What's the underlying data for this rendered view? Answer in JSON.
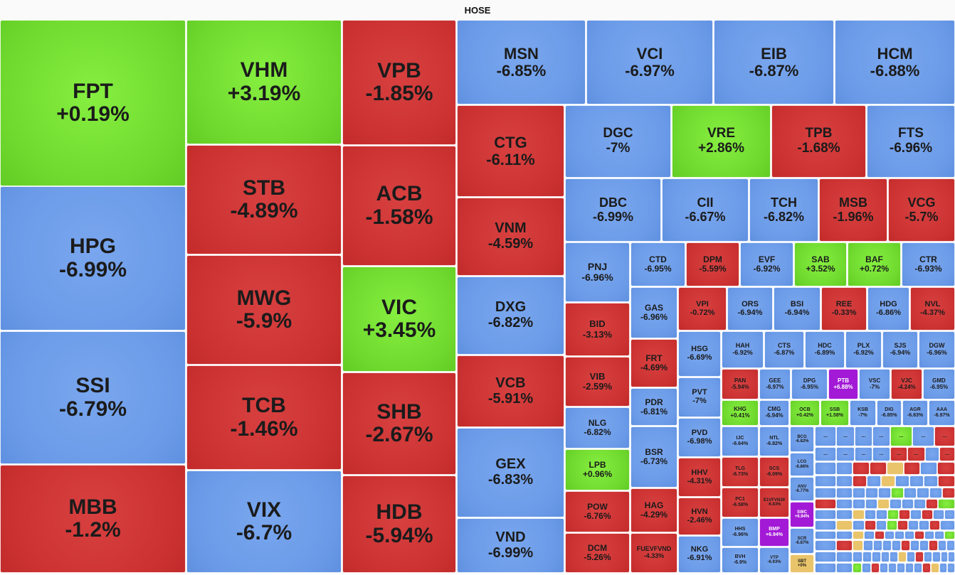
{
  "exchange": "HOSE",
  "colors": {
    "up": "#6fd92e",
    "down": "#cc3232",
    "floor": "#6b9be8",
    "ceiling": "#a21ad6",
    "reference": "#e9c46a"
  },
  "tiles": [
    {
      "ticker": "FPT",
      "change": "+0.19%",
      "status": "up"
    },
    {
      "ticker": "HPG",
      "change": "-6.99%",
      "status": "floor"
    },
    {
      "ticker": "SSI",
      "change": "-6.79%",
      "status": "floor"
    },
    {
      "ticker": "MBB",
      "change": "-1.2%",
      "status": "down"
    },
    {
      "ticker": "VHM",
      "change": "+3.19%",
      "status": "up"
    },
    {
      "ticker": "STB",
      "change": "-4.89%",
      "status": "down"
    },
    {
      "ticker": "MWG",
      "change": "-5.9%",
      "status": "down"
    },
    {
      "ticker": "TCB",
      "change": "-1.46%",
      "status": "down"
    },
    {
      "ticker": "VIX",
      "change": "-6.7%",
      "status": "floor"
    },
    {
      "ticker": "VPB",
      "change": "-1.85%",
      "status": "down"
    },
    {
      "ticker": "ACB",
      "change": "-1.58%",
      "status": "down"
    },
    {
      "ticker": "VIC",
      "change": "+3.45%",
      "status": "up"
    },
    {
      "ticker": "SHB",
      "change": "-2.67%",
      "status": "down"
    },
    {
      "ticker": "HDB",
      "change": "-5.94%",
      "status": "down"
    },
    {
      "ticker": "MSN",
      "change": "-6.85%",
      "status": "floor"
    },
    {
      "ticker": "VCI",
      "change": "-6.97%",
      "status": "floor"
    },
    {
      "ticker": "EIB",
      "change": "-6.87%",
      "status": "floor"
    },
    {
      "ticker": "HCM",
      "change": "-6.88%",
      "status": "floor"
    },
    {
      "ticker": "CTG",
      "change": "-6.11%",
      "status": "down"
    },
    {
      "ticker": "VNM",
      "change": "-4.59%",
      "status": "down"
    },
    {
      "ticker": "DXG",
      "change": "-6.82%",
      "status": "floor"
    },
    {
      "ticker": "VCB",
      "change": "-5.91%",
      "status": "down"
    },
    {
      "ticker": "GEX",
      "change": "-6.83%",
      "status": "floor"
    },
    {
      "ticker": "VND",
      "change": "-6.99%",
      "status": "floor"
    },
    {
      "ticker": "DGC",
      "change": "-7%",
      "status": "floor"
    },
    {
      "ticker": "VRE",
      "change": "+2.86%",
      "status": "up"
    },
    {
      "ticker": "TPB",
      "change": "-1.68%",
      "status": "down"
    },
    {
      "ticker": "FTS",
      "change": "-6.96%",
      "status": "floor"
    },
    {
      "ticker": "DBC",
      "change": "-6.99%",
      "status": "floor"
    },
    {
      "ticker": "CII",
      "change": "-6.67%",
      "status": "floor"
    },
    {
      "ticker": "TCH",
      "change": "-6.82%",
      "status": "floor"
    },
    {
      "ticker": "MSB",
      "change": "-1.96%",
      "status": "down"
    },
    {
      "ticker": "VCG",
      "change": "-5.7%",
      "status": "down"
    },
    {
      "ticker": "PNJ",
      "change": "-6.96%",
      "status": "floor"
    },
    {
      "ticker": "CTD",
      "change": "-6.95%",
      "status": "floor"
    },
    {
      "ticker": "DPM",
      "change": "-5.59%",
      "status": "down"
    },
    {
      "ticker": "EVF",
      "change": "-6.92%",
      "status": "floor"
    },
    {
      "ticker": "SAB",
      "change": "+3.52%",
      "status": "up"
    },
    {
      "ticker": "BAF",
      "change": "+0.72%",
      "status": "up"
    },
    {
      "ticker": "CTR",
      "change": "-6.93%",
      "status": "floor"
    },
    {
      "ticker": "GAS",
      "change": "-6.96%",
      "status": "floor"
    },
    {
      "ticker": "VPI",
      "change": "-0.72%",
      "status": "down"
    },
    {
      "ticker": "ORS",
      "change": "-6.94%",
      "status": "floor"
    },
    {
      "ticker": "BSI",
      "change": "-6.94%",
      "status": "floor"
    },
    {
      "ticker": "REE",
      "change": "-0.33%",
      "status": "down"
    },
    {
      "ticker": "HDG",
      "change": "-6.86%",
      "status": "floor"
    },
    {
      "ticker": "NVL",
      "change": "-4.37%",
      "status": "down"
    },
    {
      "ticker": "BID",
      "change": "-3.13%",
      "status": "down"
    },
    {
      "ticker": "VIB",
      "change": "-2.59%",
      "status": "down"
    },
    {
      "ticker": "NLG",
      "change": "-6.82%",
      "status": "floor"
    },
    {
      "ticker": "LPB",
      "change": "+0.96%",
      "status": "up"
    },
    {
      "ticker": "POW",
      "change": "-6.76%",
      "status": "down"
    },
    {
      "ticker": "DCM",
      "change": "-5.26%",
      "status": "down"
    },
    {
      "ticker": "FRT",
      "change": "-4.69%",
      "status": "down"
    },
    {
      "ticker": "PDR",
      "change": "-6.81%",
      "status": "floor"
    },
    {
      "ticker": "BSR",
      "change": "-6.73%",
      "status": "floor"
    },
    {
      "ticker": "HAG",
      "change": "-4.29%",
      "status": "down"
    },
    {
      "ticker": "FUEVFVND",
      "change": "-4.33%",
      "status": "down"
    },
    {
      "ticker": "HSG",
      "change": "-6.69%",
      "status": "floor"
    },
    {
      "ticker": "PVT",
      "change": "-7%",
      "status": "floor"
    },
    {
      "ticker": "PVD",
      "change": "-6.98%",
      "status": "floor"
    },
    {
      "ticker": "HHV",
      "change": "-4.31%",
      "status": "down"
    },
    {
      "ticker": "HVN",
      "change": "-2.46%",
      "status": "down"
    },
    {
      "ticker": "NKG",
      "change": "-6.91%",
      "status": "floor"
    },
    {
      "ticker": "HAH",
      "change": "-6.92%",
      "status": "floor"
    },
    {
      "ticker": "CTS",
      "change": "-6.87%",
      "status": "floor"
    },
    {
      "ticker": "HDC",
      "change": "-6.89%",
      "status": "floor"
    },
    {
      "ticker": "PLX",
      "change": "-6.92%",
      "status": "floor"
    },
    {
      "ticker": "SJS",
      "change": "-6.94%",
      "status": "floor"
    },
    {
      "ticker": "DGW",
      "change": "-6.96%",
      "status": "floor"
    },
    {
      "ticker": "PAN",
      "change": "-5.94%",
      "status": "down"
    },
    {
      "ticker": "GEE",
      "change": "-6.97%",
      "status": "floor"
    },
    {
      "ticker": "DPG",
      "change": "-6.95%",
      "status": "floor"
    },
    {
      "ticker": "PTB",
      "change": "+6.88%",
      "status": "ceiling"
    },
    {
      "ticker": "VSC",
      "change": "-7%",
      "status": "floor"
    },
    {
      "ticker": "VJC",
      "change": "-4.24%",
      "status": "down"
    },
    {
      "ticker": "GMD",
      "change": "-6.95%",
      "status": "floor"
    },
    {
      "ticker": "KHG",
      "change": "+0.41%",
      "status": "up"
    },
    {
      "ticker": "CMG",
      "change": "-6.94%",
      "status": "floor"
    },
    {
      "ticker": "OCB",
      "change": "+0.42%",
      "status": "up"
    },
    {
      "ticker": "SSB",
      "change": "+1.58%",
      "status": "up"
    },
    {
      "ticker": "KSB",
      "change": "-7%",
      "status": "floor"
    },
    {
      "ticker": "DIG",
      "change": "-6.85%",
      "status": "floor"
    },
    {
      "ticker": "AGR",
      "change": "-6.83%",
      "status": "floor"
    },
    {
      "ticker": "AAA",
      "change": "-6.97%",
      "status": "floor"
    },
    {
      "ticker": "IJC",
      "change": "-6.64%",
      "status": "floor"
    },
    {
      "ticker": "NTL",
      "change": "-6.82%",
      "status": "floor"
    },
    {
      "ticker": "BCG",
      "change": "-6.82%",
      "status": "floor"
    },
    {
      "ticker": "TLG",
      "change": "-6.73%",
      "status": "down"
    },
    {
      "ticker": "SCS",
      "change": "-6.09%",
      "status": "down"
    },
    {
      "ticker": "LCG",
      "change": "-6.86%",
      "status": "floor"
    },
    {
      "ticker": "PC1",
      "change": "-6.58%",
      "status": "down"
    },
    {
      "ticker": "E1VFVN30",
      "change": "-6.83%",
      "status": "down"
    },
    {
      "ticker": "ANV",
      "change": "-6.77%",
      "status": "floor"
    },
    {
      "ticker": "HHS",
      "change": "-6.96%",
      "status": "floor"
    },
    {
      "ticker": "BMP",
      "change": "+6.94%",
      "status": "ceiling"
    },
    {
      "ticker": "SWC",
      "change": "+6.94%",
      "status": "ceiling"
    },
    {
      "ticker": "SCR",
      "change": "-6.87%",
      "status": "floor"
    },
    {
      "ticker": "BVH",
      "change": "-6.9%",
      "status": "floor"
    },
    {
      "ticker": "VTP",
      "change": "-6.93%",
      "status": "floor"
    },
    {
      "ticker": "SBT",
      "change": "+0%",
      "status": "reference"
    }
  ],
  "collapsed": {
    "label": "...",
    "statuses": [
      "floor",
      "floor",
      "floor",
      "floor",
      "up",
      "floor",
      "down",
      "floor",
      "floor",
      "floor",
      "floor",
      "down",
      "down",
      "floor",
      "down",
      "floor",
      "floor",
      "down",
      "down",
      "ref",
      "down",
      "floor",
      "down",
      "floor",
      "floor",
      "down",
      "floor",
      "ref",
      "floor",
      "floor",
      "floor",
      "down",
      "floor",
      "floor",
      "floor",
      "floor",
      "floor",
      "up",
      "floor",
      "floor",
      "floor",
      "down",
      "down",
      "floor",
      "floor",
      "floor",
      "ref",
      "floor",
      "floor",
      "floor",
      "down",
      "up",
      "floor",
      "floor",
      "ref",
      "floor",
      "floor",
      "up",
      "down",
      "floor",
      "down",
      "floor",
      "floor",
      "floor",
      "ref",
      "floor",
      "down",
      "floor",
      "up",
      "down",
      "floor",
      "floor",
      "down",
      "floor",
      "floor",
      "floor",
      "ref",
      "floor",
      "down",
      "floor",
      "floor",
      "floor",
      "down",
      "floor",
      "floor",
      "up",
      "floor",
      "down",
      "ref",
      "floor",
      "floor",
      "floor",
      "floor",
      "down",
      "floor",
      "floor",
      "down",
      "floor",
      "floor",
      "floor",
      "floor",
      "floor",
      "floor",
      "floor",
      "floor",
      "floor",
      "ref",
      "floor",
      "down",
      "floor",
      "floor",
      "floor",
      "floor",
      "floor",
      "floor",
      "up",
      "floor",
      "down",
      "floor",
      "floor",
      "floor",
      "floor",
      "floor",
      "down",
      "ref",
      "floor",
      "floor",
      "floor",
      "down",
      "floor",
      "floor",
      "floor",
      "floor",
      "floor",
      "floor",
      "up",
      "floor",
      "down"
    ]
  }
}
